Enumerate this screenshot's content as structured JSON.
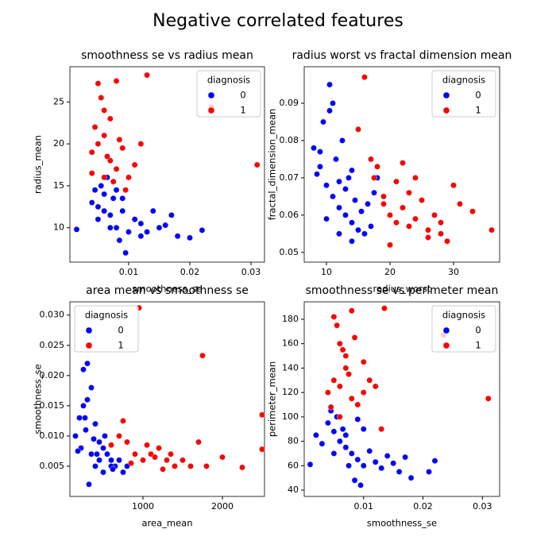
{
  "title": "Negative correlated features",
  "chart_data": [
    {
      "type": "scatter",
      "title": "smoothness se vs radius mean",
      "xlabel": "smoothness_se",
      "ylabel": "radius_mean",
      "xlim": [
        0.0004,
        0.0322
      ],
      "ylim": [
        5.9,
        29.2
      ],
      "xticks": [
        0.01,
        0.02,
        0.03
      ],
      "yticks": [
        10,
        15,
        20,
        25
      ],
      "legend_title": "diagnosis",
      "legend": "upper right",
      "series": [
        {
          "name": "0",
          "color": "#0000ff",
          "x": [
            0.004,
            0.005,
            0.006,
            0.007,
            0.008,
            0.009,
            0.01,
            0.011,
            0.012,
            0.013,
            0.014,
            0.015,
            0.016,
            0.018,
            0.02,
            0.022,
            0.0015,
            0.0045,
            0.0055,
            0.0065,
            0.0075,
            0.0085,
            0.0095,
            0.005,
            0.007,
            0.009,
            0.006,
            0.008,
            0.012,
            0.017
          ],
          "y": [
            13,
            12.5,
            14,
            11.5,
            10,
            12,
            9.5,
            11,
            10.5,
            9.5,
            12,
            10,
            10.3,
            9,
            8.8,
            9.7,
            9.8,
            14.5,
            15,
            16,
            13.5,
            8.5,
            7,
            11,
            10,
            13.5,
            12,
            14.5,
            9,
            11.5
          ]
        },
        {
          "name": "1",
          "color": "#ff0000",
          "x": [
            0.004,
            0.005,
            0.006,
            0.007,
            0.008,
            0.009,
            0.01,
            0.011,
            0.012,
            0.005,
            0.006,
            0.007,
            0.004,
            0.008,
            0.013,
            0.0045,
            0.0055,
            0.0065,
            0.0085,
            0.031,
            0.0235,
            0.0075,
            0.0095,
            0.006
          ],
          "y": [
            19,
            20,
            21,
            18,
            17,
            19.5,
            16,
            17.5,
            20,
            27.2,
            24,
            23,
            16.5,
            27.5,
            28.2,
            22,
            25.5,
            18.5,
            20.5,
            17.5,
            24.4,
            15.5,
            14.5,
            16
          ]
        }
      ]
    },
    {
      "type": "scatter",
      "title": "radius worst vs fractal dimension mean",
      "xlabel": "radius_worst",
      "ylabel": "fractal_dimension_mean",
      "xlim": [
        6.5,
        37.25
      ],
      "ylim": [
        0.0474,
        0.0998
      ],
      "xticks": [
        10,
        20,
        30
      ],
      "yticks": [
        0.05,
        0.06,
        0.07,
        0.08,
        0.09
      ],
      "legend_title": "diagnosis",
      "legend": "upper right",
      "series": [
        {
          "name": "0",
          "color": "#0000ff",
          "x": [
            8,
            9,
            10,
            11,
            12,
            13,
            14,
            15,
            16,
            17,
            10.5,
            11,
            9.5,
            12.5,
            13.5,
            14.5,
            15.5,
            11.5,
            10,
            12,
            13,
            14,
            16.5,
            9,
            8.5,
            10.5,
            18,
            17.5,
            12,
            14
          ],
          "y": [
            0.078,
            0.073,
            0.068,
            0.065,
            0.062,
            0.06,
            0.058,
            0.056,
            0.055,
            0.057,
            0.095,
            0.09,
            0.085,
            0.08,
            0.07,
            0.064,
            0.061,
            0.075,
            0.059,
            0.055,
            0.067,
            0.072,
            0.063,
            0.077,
            0.071,
            0.088,
            0.07,
            0.066,
            0.069,
            0.053
          ]
        },
        {
          "name": "1",
          "color": "#ff0000",
          "x": [
            16,
            17,
            18,
            19,
            20,
            21,
            22,
            23,
            24,
            25,
            26,
            27,
            28,
            29,
            30,
            31,
            33,
            36,
            15,
            17.5,
            20,
            22,
            24,
            26,
            28,
            19,
            21,
            23
          ],
          "y": [
            0.097,
            0.075,
            0.073,
            0.065,
            0.06,
            0.058,
            0.062,
            0.066,
            0.07,
            0.064,
            0.056,
            0.06,
            0.055,
            0.053,
            0.068,
            0.063,
            0.061,
            0.056,
            0.083,
            0.07,
            0.052,
            0.074,
            0.059,
            0.054,
            0.058,
            0.063,
            0.069,
            0.057
          ]
        }
      ]
    },
    {
      "type": "scatter",
      "title": "area mean vs smoothness se",
      "xlabel": "area_mean",
      "ylabel": "smoothness_se",
      "xlim": [
        80,
        2530
      ],
      "ylim": [
        0.0,
        0.0322
      ],
      "xticks": [
        1000,
        2000
      ],
      "yticks": [
        0.005,
        {
          "value": 0.01,
          "label": "0.010"
        },
        0.015,
        {
          "value": 0.02,
          "label": "0.020"
        },
        0.025,
        {
          "value": 0.03,
          "label": "0.030"
        }
      ],
      "legend_title": "diagnosis",
      "legend": "upper left",
      "series": [
        {
          "name": "0",
          "color": "#0000ff",
          "x": [
            150,
            200,
            250,
            300,
            350,
            400,
            450,
            500,
            550,
            600,
            650,
            700,
            250,
            300,
            280,
            220,
            400,
            350,
            500,
            600,
            180,
            320,
            450,
            750,
            800,
            270,
            380,
            520,
            620,
            420
          ],
          "y": [
            0.01,
            0.013,
            0.021,
            0.022,
            0.018,
            0.012,
            0.009,
            0.008,
            0.007,
            0.006,
            0.005,
            0.006,
            0.015,
            0.016,
            0.011,
            0.008,
            0.005,
            0.007,
            0.004,
            0.005,
            0.0075,
            0.002,
            0.006,
            0.004,
            0.005,
            0.013,
            0.0095,
            0.01,
            0.0045,
            0.007
          ]
        },
        {
          "name": "1",
          "color": "#ff0000",
          "x": [
            700,
            800,
            900,
            1000,
            1100,
            1200,
            1300,
            1400,
            1500,
            1600,
            1700,
            1800,
            2000,
            2250,
            2500,
            2500,
            950,
            1750,
            750,
            1050,
            1250,
            850,
            1150,
            1350,
            600
          ],
          "y": [
            0.01,
            0.009,
            0.007,
            0.006,
            0.007,
            0.008,
            0.006,
            0.005,
            0.006,
            0.005,
            0.009,
            0.005,
            0.0065,
            0.0048,
            0.0135,
            0.0078,
            0.0312,
            0.0233,
            0.0125,
            0.0085,
            0.0045,
            0.0055,
            0.0065,
            0.007,
            0.0085
          ]
        }
      ]
    },
    {
      "type": "scatter",
      "title": "smoothness se vs perimeter mean",
      "xlabel": "smoothness_se",
      "ylabel": "perimeter_mean",
      "xlim": [
        0.0,
        0.0329
      ],
      "ylim": [
        34.8,
        194.3
      ],
      "xticks": [
        0.01,
        0.02,
        0.03
      ],
      "yticks": [
        40,
        60,
        80,
        100,
        120,
        140,
        160,
        180
      ],
      "legend_title": "diagnosis",
      "legend": "upper right",
      "series": [
        {
          "name": "0",
          "color": "#0000ff",
          "x": [
            0.002,
            0.004,
            0.005,
            0.006,
            0.007,
            0.008,
            0.009,
            0.01,
            0.011,
            0.012,
            0.013,
            0.014,
            0.016,
            0.018,
            0.021,
            0.022,
            0.001,
            0.003,
            0.0045,
            0.0055,
            0.0065,
            0.0075,
            0.0085,
            0.0095,
            0.005,
            0.007,
            0.009,
            0.015,
            0.017,
            0.01
          ],
          "y": [
            85,
            95,
            88,
            80,
            75,
            70,
            65,
            60,
            72,
            63,
            58,
            68,
            55,
            50,
            55,
            64,
            61,
            78,
            105,
            100,
            90,
            60,
            48,
            44,
            70,
            85,
            98,
            62,
            67,
            90
          ]
        },
        {
          "name": "1",
          "color": "#ff0000",
          "x": [
            0.004,
            0.005,
            0.006,
            0.007,
            0.008,
            0.009,
            0.01,
            0.011,
            0.012,
            0.013,
            0.005,
            0.006,
            0.007,
            0.008,
            0.0055,
            0.0065,
            0.0075,
            0.0085,
            0.031,
            0.0235,
            0.0135,
            0.0045,
            0.01,
            0.006
          ],
          "y": [
            120,
            130,
            125,
            140,
            115,
            110,
            145,
            130,
            125,
            90,
            182,
            160,
            150,
            187,
            175,
            155,
            135,
            165,
            115,
            167,
            189,
            108,
            120,
            100
          ]
        }
      ]
    }
  ]
}
